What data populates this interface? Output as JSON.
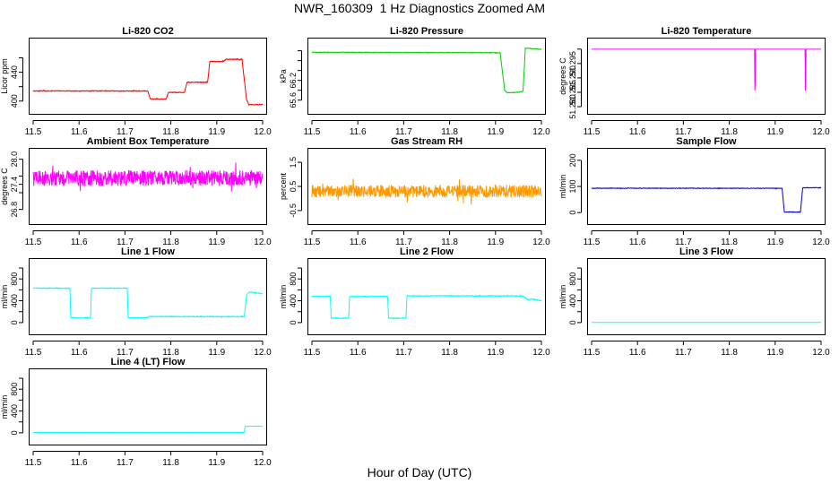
{
  "page": {
    "title": "NWR_160309  1 Hz Diagnostics Zoomed AM",
    "xlabel": "Hour of Day (UTC)"
  },
  "chart_data": [
    {
      "type": "line",
      "id": "co2",
      "title": "Li-820 CO2",
      "ylabel": "Licor ppm",
      "color": "#ff0000",
      "xlim": [
        11.5,
        12.0
      ],
      "ylim": [
        391,
        478
      ],
      "xticks": [
        11.5,
        11.6,
        11.7,
        11.8,
        11.9,
        12.0
      ],
      "xtick_labels": [
        "11.5",
        "11.6",
        "11.7",
        "11.8",
        "11.9",
        "12.0"
      ],
      "yticks": [
        400,
        420,
        440,
        460
      ],
      "ytick_labels": [
        "400",
        "",
        "440",
        ""
      ],
      "x": [
        11.5,
        11.75,
        11.755,
        11.79,
        11.795,
        11.83,
        11.835,
        11.88,
        11.885,
        11.915,
        11.92,
        11.955,
        11.96,
        11.965,
        11.97,
        12.0
      ],
      "y": [
        414,
        414,
        403,
        403,
        412,
        412,
        426,
        426,
        455,
        455,
        458,
        458,
        430,
        402,
        395,
        395
      ],
      "noise": 0.6
    },
    {
      "type": "line",
      "id": "pressure",
      "title": "Li-820 Pressure",
      "ylabel": "kPa",
      "color": "#00cc00",
      "xlim": [
        11.5,
        12.0
      ],
      "ylim": [
        65.45,
        66.72
      ],
      "xticks": [
        11.5,
        11.6,
        11.7,
        11.8,
        11.9,
        12.0
      ],
      "xtick_labels": [
        "11.5",
        "11.6",
        "11.7",
        "11.8",
        "11.9",
        "12.0"
      ],
      "yticks": [
        65.6,
        65.8,
        66.0,
        66.2,
        66.4,
        66.6
      ],
      "ytick_labels": [
        "65.6",
        "",
        "66.2",
        "",
        "",
        ""
      ],
      "x": [
        11.5,
        11.91,
        11.92,
        11.925,
        11.95,
        11.96,
        11.965,
        11.97,
        12.0
      ],
      "y": [
        66.57,
        66.56,
        65.8,
        65.75,
        65.76,
        65.78,
        66.65,
        66.65,
        66.63
      ],
      "noise": 0.006
    },
    {
      "type": "line",
      "id": "temperature",
      "title": "Li-820 Temperature",
      "ylabel": "degrees C",
      "color": "#ff00ff",
      "xlim": [
        11.5,
        12.0
      ],
      "ylim": [
        51.2797,
        51.3015
      ],
      "xticks": [
        11.5,
        11.6,
        11.7,
        11.8,
        11.9,
        12.0
      ],
      "xtick_labels": [
        "11.5",
        "11.6",
        "11.7",
        "11.8",
        "11.9",
        "12.0"
      ],
      "yticks": [
        51.28,
        51.285,
        51.29,
        51.295,
        51.3
      ],
      "ytick_labels": [
        "51.280",
        "51.285",
        "51.290",
        "51.295",
        ""
      ],
      "x": [
        11.5,
        11.855,
        11.856,
        11.857,
        11.965,
        11.966,
        11.967,
        12.0
      ],
      "y": [
        51.3,
        51.3,
        51.28,
        51.3,
        51.3,
        51.28,
        51.3,
        51.3
      ],
      "noise": 0
    },
    {
      "type": "line",
      "id": "ambient",
      "title": "Ambient Box Temperature",
      "ylabel": "degrees C",
      "color": "#ff00ff",
      "xlim": [
        11.5,
        12.0
      ],
      "ylim": [
        26.6,
        28.1
      ],
      "xticks": [
        11.5,
        11.6,
        11.7,
        11.8,
        11.9,
        12.0
      ],
      "xtick_labels": [
        "11.5",
        "11.6",
        "11.7",
        "11.8",
        "11.9",
        "12.0"
      ],
      "yticks": [
        26.8,
        27.2,
        27.4,
        27.6,
        28.0
      ],
      "ytick_labels": [
        "26.8",
        "",
        "27.4",
        "",
        "28.0"
      ],
      "x": [
        11.5,
        12.0
      ],
      "y": [
        27.55,
        27.55
      ],
      "noise": 0.18
    },
    {
      "type": "line",
      "id": "rh",
      "title": "Gas Stream RH",
      "ylabel": "percent",
      "color": "#ff9900",
      "xlim": [
        11.5,
        12.0
      ],
      "ylim": [
        -0.8,
        1.8
      ],
      "xticks": [
        11.5,
        11.6,
        11.7,
        11.8,
        11.9,
        12.0
      ],
      "xtick_labels": [
        "11.5",
        "11.6",
        "11.7",
        "11.8",
        "11.9",
        "12.0"
      ],
      "yticks": [
        -0.5,
        0.5,
        1.5
      ],
      "ytick_labels": [
        "-0.5",
        "0.5",
        "1.5"
      ],
      "x": [
        11.5,
        12.0
      ],
      "y": [
        0.3,
        0.3
      ],
      "noise": 0.25
    },
    {
      "type": "line",
      "id": "sample_flow",
      "title": "Sample Flow",
      "ylabel": "ml/min",
      "color": "#0000cc",
      "xlim": [
        11.5,
        12.0
      ],
      "ylim": [
        -20,
        220
      ],
      "xticks": [
        11.5,
        11.6,
        11.7,
        11.8,
        11.9,
        12.0
      ],
      "xtick_labels": [
        "11.5",
        "11.6",
        "11.7",
        "11.8",
        "11.9",
        "12.0"
      ],
      "yticks": [
        0,
        100,
        200
      ],
      "ytick_labels": [
        "0",
        "100",
        "200"
      ],
      "x": [
        11.5,
        11.915,
        11.92,
        11.955,
        11.96,
        12.0
      ],
      "y": [
        93,
        93,
        2,
        2,
        95,
        95
      ],
      "noise": 1.2
    },
    {
      "type": "line",
      "id": "line1_flow",
      "title": "Line 1 Flow",
      "ylabel": "ml/min",
      "color": "#00ffff",
      "xlim": [
        11.5,
        12.0
      ],
      "ylim": [
        -100,
        1050
      ],
      "xticks": [
        11.5,
        11.6,
        11.7,
        11.8,
        11.9,
        12.0
      ],
      "xtick_labels": [
        "11.5",
        "11.6",
        "11.7",
        "11.8",
        "11.9",
        "12.0"
      ],
      "yticks": [
        0,
        200,
        400,
        600,
        800,
        1000
      ],
      "ytick_labels": [
        "0",
        "",
        "400",
        "",
        "800",
        ""
      ],
      "x": [
        11.5,
        11.58,
        11.582,
        11.625,
        11.627,
        11.705,
        11.707,
        11.75,
        11.752,
        11.96,
        11.965,
        11.97,
        11.98,
        12.0
      ],
      "y": [
        630,
        630,
        90,
        90,
        630,
        630,
        90,
        90,
        110,
        110,
        500,
        560,
        550,
        530
      ],
      "noise": 8
    },
    {
      "type": "line",
      "id": "line2_flow",
      "title": "Line 2 Flow",
      "ylabel": "ml/min",
      "color": "#00ffff",
      "xlim": [
        11.5,
        12.0
      ],
      "ylim": [
        -100,
        1050
      ],
      "xticks": [
        11.5,
        11.6,
        11.7,
        11.8,
        11.9,
        12.0
      ],
      "xtick_labels": [
        "11.5",
        "11.6",
        "11.7",
        "11.8",
        "11.9",
        "12.0"
      ],
      "yticks": [
        0,
        200,
        400,
        600,
        800,
        1000
      ],
      "ytick_labels": [
        "0",
        "",
        "400",
        "",
        "800",
        ""
      ],
      "x": [
        11.5,
        11.54,
        11.542,
        11.58,
        11.582,
        11.665,
        11.667,
        11.705,
        11.707,
        11.96,
        11.97,
        11.98,
        12.0
      ],
      "y": [
        480,
        480,
        80,
        80,
        480,
        480,
        80,
        80,
        490,
        490,
        420,
        430,
        400
      ],
      "noise": 8
    },
    {
      "type": "line",
      "id": "line3_flow",
      "title": "Line 3 Flow",
      "ylabel": "ml/min",
      "color": "#00ffff",
      "xlim": [
        11.5,
        12.0
      ],
      "ylim": [
        -100,
        1050
      ],
      "xticks": [
        11.5,
        11.6,
        11.7,
        11.8,
        11.9,
        12.0
      ],
      "xtick_labels": [
        "11.5",
        "11.6",
        "11.7",
        "11.8",
        "11.9",
        "12.0"
      ],
      "yticks": [
        0,
        200,
        400,
        600,
        800,
        1000
      ],
      "ytick_labels": [
        "0",
        "",
        "400",
        "",
        "800",
        ""
      ],
      "x": [
        11.5,
        12.0
      ],
      "y": [
        3,
        3
      ],
      "noise": 0
    },
    {
      "type": "line",
      "id": "line4_flow",
      "title": "Line 4 (LT) Flow",
      "ylabel": "ml/min",
      "color": "#00ffff",
      "xlim": [
        11.5,
        12.0
      ],
      "ylim": [
        -100,
        1050
      ],
      "xticks": [
        11.5,
        11.6,
        11.7,
        11.8,
        11.9,
        12.0
      ],
      "xtick_labels": [
        "11.5",
        "11.6",
        "11.7",
        "11.8",
        "11.9",
        "12.0"
      ],
      "yticks": [
        0,
        200,
        400,
        600,
        800,
        1000
      ],
      "ytick_labels": [
        "0",
        "",
        "400",
        "",
        "800",
        ""
      ],
      "x": [
        11.5,
        11.96,
        11.962,
        12.0
      ],
      "y": [
        8,
        8,
        120,
        120
      ],
      "noise": 1
    }
  ]
}
